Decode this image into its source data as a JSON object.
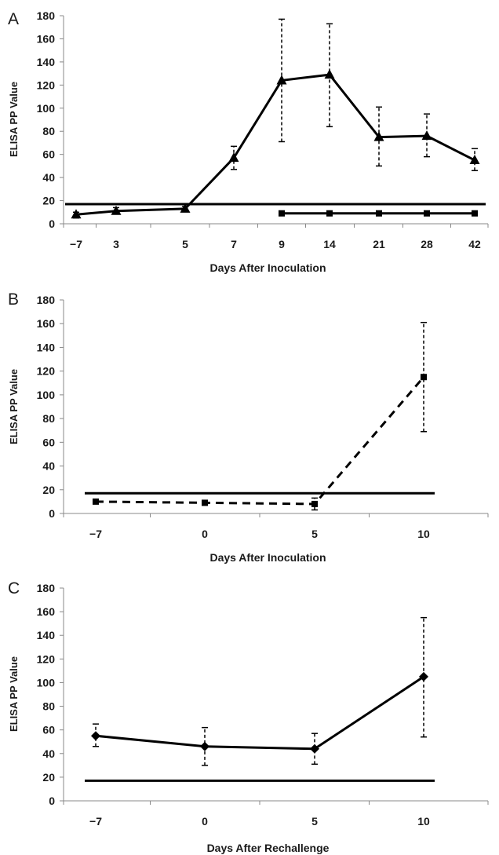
{
  "chart_data": [
    {
      "type": "line",
      "panel_label": "A",
      "ylabel": "ELISA PP Value",
      "xlabel": "Days After Inoculation",
      "categories": [
        "−7",
        "3",
        "5",
        "7",
        "9",
        "14",
        "21",
        "28",
        "42"
      ],
      "ylim": [
        0,
        180
      ],
      "yticks": [
        "0",
        "20",
        "40",
        "60",
        "80",
        "100",
        "120",
        "140",
        "160",
        "180"
      ],
      "series": [
        {
          "style": "solid",
          "marker": "triangle",
          "values": [
            8,
            11,
            13,
            57,
            124,
            129,
            75,
            76,
            55
          ],
          "err_low": [
            5,
            9,
            11,
            47,
            71,
            84,
            50,
            58,
            46
          ],
          "err_high": [
            10,
            14,
            15,
            67,
            177,
            173,
            101,
            95,
            65
          ]
        },
        {
          "style": "solid",
          "marker": "square",
          "values": [
            null,
            null,
            null,
            null,
            9,
            9,
            9,
            9,
            9
          ],
          "err_low": [
            null,
            null,
            null,
            null,
            null,
            null,
            null,
            null,
            null
          ],
          "err_high": [
            null,
            null,
            null,
            null,
            null,
            null,
            null,
            null,
            null
          ]
        }
      ],
      "cutoff": {
        "value": 17,
        "from": 0,
        "to": 8
      }
    },
    {
      "type": "line",
      "panel_label": "B",
      "ylabel": "ELISA PP Value",
      "xlabel": "Days After Inoculation",
      "categories": [
        "−7",
        "0",
        "5",
        "10"
      ],
      "ylim": [
        0,
        180
      ],
      "yticks": [
        "0",
        "20",
        "40",
        "60",
        "80",
        "100",
        "120",
        "140",
        "160",
        "180"
      ],
      "series": [
        {
          "style": "dashed",
          "marker": "square",
          "values": [
            10,
            9,
            8,
            115
          ],
          "err_low": [
            null,
            null,
            3,
            69
          ],
          "err_high": [
            null,
            null,
            13,
            161
          ]
        }
      ],
      "cutoff": {
        "value": 17,
        "from": 0,
        "to": 3
      }
    },
    {
      "type": "line",
      "panel_label": "C",
      "ylabel": "ELISA PP Value",
      "xlabel": "Days After Rechallenge",
      "categories": [
        "−7",
        "0",
        "5",
        "10"
      ],
      "ylim": [
        0,
        180
      ],
      "yticks": [
        "0",
        "20",
        "40",
        "60",
        "80",
        "100",
        "120",
        "140",
        "160",
        "180"
      ],
      "series": [
        {
          "style": "solid",
          "marker": "diamond",
          "values": [
            55,
            46,
            44,
            105
          ],
          "err_low": [
            46,
            30,
            31,
            54
          ],
          "err_high": [
            65,
            62,
            57,
            155
          ]
        }
      ],
      "cutoff": {
        "value": 17,
        "from": 0,
        "to": 3
      }
    }
  ]
}
